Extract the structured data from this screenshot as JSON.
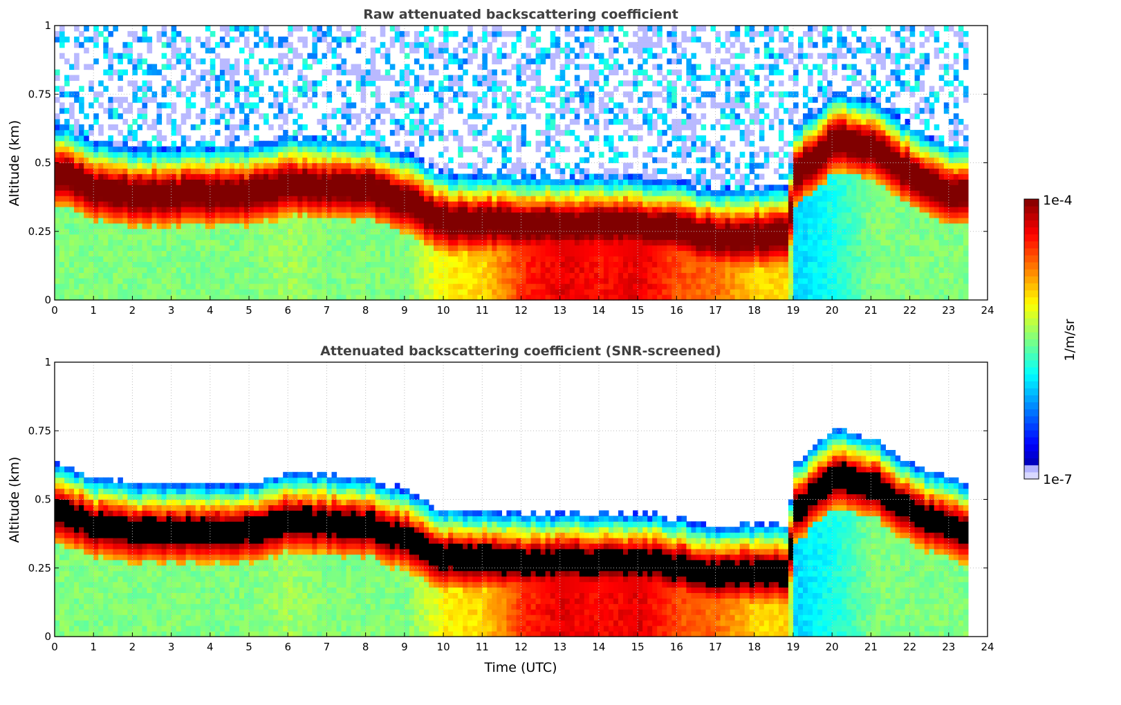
{
  "chart_data": [
    {
      "type": "heatmap",
      "title": "Raw attenuated backscattering coefficient",
      "xlabel": "",
      "ylabel": "Altitude (km)",
      "xlim": [
        0,
        24
      ],
      "ylim": [
        0,
        1
      ],
      "x_ticks": [
        "0",
        "1",
        "2",
        "3",
        "4",
        "5",
        "6",
        "7",
        "8",
        "9",
        "10",
        "11",
        "12",
        "13",
        "14",
        "15",
        "16",
        "17",
        "18",
        "19",
        "20",
        "21",
        "22",
        "23",
        "24"
      ],
      "y_ticks": [
        "0",
        "0.25",
        "0.5",
        "0.75",
        "1"
      ],
      "grid": true,
      "screened": false
    },
    {
      "type": "heatmap",
      "title": "Attenuated backscattering coefficient (SNR-screened)",
      "xlabel": "Time (UTC)",
      "ylabel": "Altitude (km)",
      "xlim": [
        0,
        24
      ],
      "ylim": [
        0,
        1
      ],
      "x_ticks": [
        "0",
        "1",
        "2",
        "3",
        "4",
        "5",
        "6",
        "7",
        "8",
        "9",
        "10",
        "11",
        "12",
        "13",
        "14",
        "15",
        "16",
        "17",
        "18",
        "19",
        "20",
        "21",
        "22",
        "23",
        "24"
      ],
      "y_ticks": [
        "0",
        "0.25",
        "0.5",
        "0.75",
        "1"
      ],
      "grid": true,
      "screened": true
    }
  ],
  "profile": {
    "hours": [
      0,
      1,
      2,
      3,
      4,
      5,
      6,
      7,
      8,
      9,
      10,
      11,
      12,
      13,
      14,
      15,
      16,
      17,
      18,
      18.8,
      19,
      20,
      21,
      22,
      23,
      23.5
    ],
    "layer_center_km": [
      0.46,
      0.4,
      0.38,
      0.38,
      0.38,
      0.38,
      0.42,
      0.41,
      0.4,
      0.35,
      0.28,
      0.28,
      0.27,
      0.27,
      0.27,
      0.27,
      0.25,
      0.22,
      0.23,
      0.23,
      0.45,
      0.58,
      0.55,
      0.45,
      0.39,
      0.38
    ],
    "below_log10": [
      -5.5,
      -5.5,
      -5.5,
      -5.5,
      -5.5,
      -5.5,
      -5.4,
      -5.5,
      -5.5,
      -5.5,
      -5.1,
      -5.0,
      -4.5,
      -4.3,
      -4.4,
      -4.3,
      -4.6,
      -4.7,
      -5.0,
      -5.0,
      -6.0,
      -5.8,
      -5.5,
      -5.5,
      -5.5,
      -5.5
    ],
    "data_end_hour": 23.5
  },
  "colorbar": {
    "label": "1/m/sr",
    "max_label": "1e-4",
    "min_label": "1e-7",
    "log10_range": [
      -7,
      -4
    ]
  }
}
